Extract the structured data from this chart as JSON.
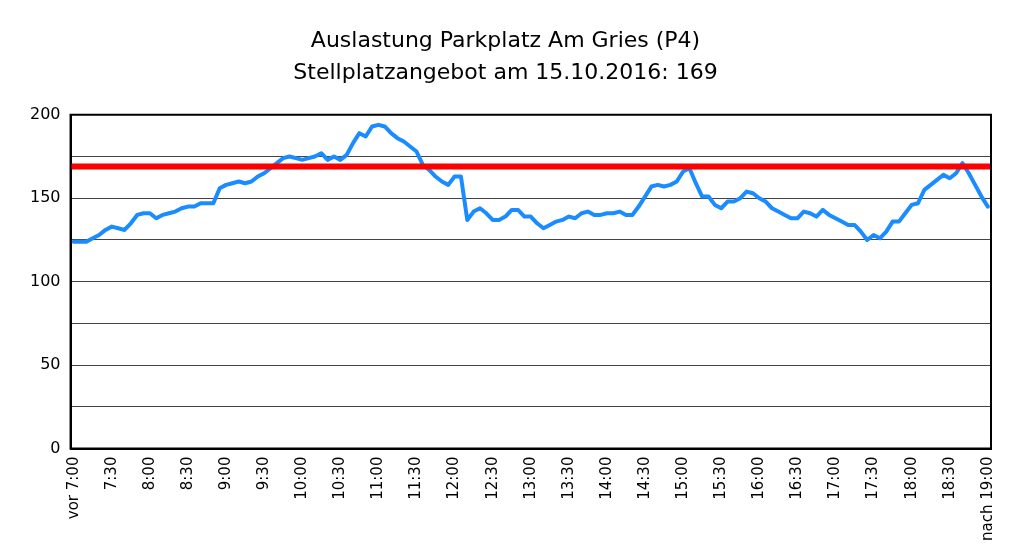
{
  "chart_data": {
    "type": "line",
    "title": "Auslastung Parkplatz Am Gries (P4)",
    "subtitle": "Stellplatzangebot am 15.10.2016: 169",
    "categories": [
      "vor 7:00",
      null,
      null,
      null,
      null,
      null,
      "7:30",
      null,
      null,
      null,
      null,
      null,
      "8:00",
      null,
      null,
      null,
      null,
      null,
      "8:30",
      null,
      null,
      null,
      null,
      null,
      "9:00",
      null,
      null,
      null,
      null,
      null,
      "9:30",
      null,
      null,
      null,
      null,
      null,
      "10:00",
      null,
      null,
      null,
      null,
      null,
      "10:30",
      null,
      null,
      null,
      null,
      null,
      "11:00",
      null,
      null,
      null,
      null,
      null,
      "11:30",
      null,
      null,
      null,
      null,
      null,
      "12:00",
      null,
      null,
      null,
      null,
      null,
      "12:30",
      null,
      null,
      null,
      null,
      null,
      "13:00",
      null,
      null,
      null,
      null,
      null,
      "13:30",
      null,
      null,
      null,
      null,
      null,
      "14:00",
      null,
      null,
      null,
      null,
      null,
      "14:30",
      null,
      null,
      null,
      null,
      null,
      "15:00",
      null,
      null,
      null,
      null,
      null,
      "15:30",
      null,
      null,
      null,
      null,
      null,
      "16:00",
      null,
      null,
      null,
      null,
      null,
      "16:30",
      null,
      null,
      null,
      null,
      null,
      "17:00",
      null,
      null,
      null,
      null,
      null,
      "17:30",
      null,
      null,
      null,
      null,
      null,
      "18:00",
      null,
      null,
      null,
      null,
      null,
      "18:30",
      null,
      null,
      null,
      null,
      null,
      "nach 19:00"
    ],
    "series": [
      {
        "color": "#1a8cff",
        "values": [
          124,
          124,
          124,
          126,
          128,
          131,
          133,
          132,
          131,
          135,
          140,
          141,
          141,
          138,
          140,
          141,
          142,
          144,
          145,
          145,
          147,
          147,
          147,
          156,
          158,
          159,
          160,
          159,
          160,
          163,
          165,
          168,
          171,
          174,
          175,
          174,
          173,
          174,
          175,
          177,
          173,
          175,
          173,
          176,
          183,
          189,
          187,
          193,
          194,
          193,
          189,
          186,
          184,
          181,
          178,
          170,
          167,
          163,
          160,
          158,
          163,
          163,
          137,
          142,
          144,
          141,
          137,
          137,
          139,
          143,
          143,
          139,
          139,
          135,
          132,
          134,
          136,
          137,
          139,
          138,
          141,
          142,
          140,
          140,
          141,
          141,
          142,
          140,
          140,
          145,
          151,
          157,
          158,
          157,
          158,
          160,
          166,
          168,
          159,
          151,
          151,
          146,
          144,
          148,
          148,
          150,
          154,
          153,
          150,
          148,
          144,
          142,
          140,
          138,
          138,
          142,
          141,
          139,
          143,
          140,
          138,
          136,
          134,
          134,
          130,
          125,
          128,
          126,
          130,
          136,
          136,
          141,
          146,
          147,
          155,
          158,
          161,
          164,
          162,
          165,
          171,
          165,
          158,
          151,
          145
        ]
      }
    ],
    "ylim": [
      0,
      200
    ],
    "yticks": [
      0,
      {
        "value": 25,
        "label": null
      },
      50,
      {
        "value": 75,
        "label": null
      },
      100,
      {
        "value": 125,
        "label": null
      },
      150,
      {
        "value": 175,
        "label": null
      },
      200
    ],
    "grid": "y",
    "legend": false,
    "marker": "none",
    "line_style": "solid",
    "ref_lines": [
      {
        "axis": "y",
        "value": 169,
        "color": "#ff0000"
      }
    ]
  }
}
